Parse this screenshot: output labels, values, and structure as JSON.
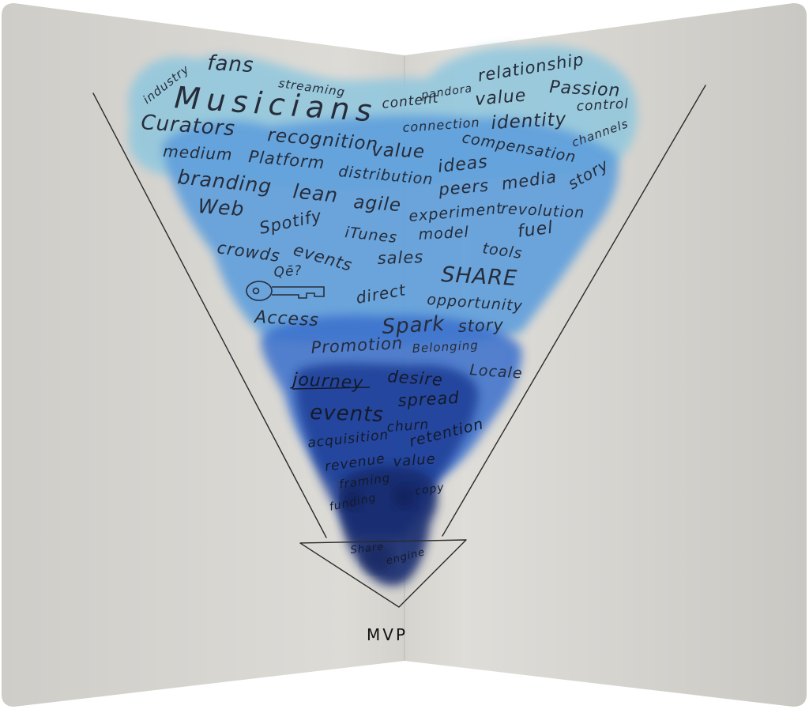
{
  "bottom_label": "MVP",
  "words": {
    "industry": "industry",
    "fans": "fans",
    "streaming": "streaming",
    "pandora": "pandora",
    "relationship": "relationship",
    "musicians": "Musicians",
    "content": "content",
    "value_top": "value",
    "passion": "Passion",
    "control": "control",
    "curators": "Curators",
    "connection": "connection",
    "identity": "identity",
    "channels": "channels",
    "recognition": "recognition",
    "value_mid": "value",
    "compensation": "compensation",
    "medium": "medium",
    "platform": "Platform",
    "distribution": "distribution",
    "ideas": "ideas",
    "story_top": "story",
    "branding": "branding",
    "lean": "lean",
    "agile": "agile",
    "peers": "peers",
    "media": "media",
    "web": "Web",
    "spotify": "Spotify",
    "experiment": "experiment",
    "revolution": "revolution",
    "itunes": "iTunes",
    "model": "model",
    "fuel": "fuel",
    "crowds": "crowds",
    "events_top": "events",
    "sales": "sales",
    "tools": "tools",
    "qe": "Qē?",
    "share": "SHARE",
    "direct": "direct",
    "opportunity": "opportunity",
    "access": "Access",
    "spark": "Spark",
    "story_mid": "story",
    "promotion": "Promotion",
    "belonging": "Belonging",
    "journey": "journey",
    "desire": "desire",
    "locale": "Locale",
    "spread": "spread",
    "events_low": "events",
    "churn": "churn",
    "retention": "retention",
    "acquisition": "acquisition",
    "revenue": "revenue",
    "value_low": "value",
    "framing": "framing",
    "funding": "funding",
    "copy": "copy",
    "share_small": "Share",
    "engine": "engine"
  }
}
